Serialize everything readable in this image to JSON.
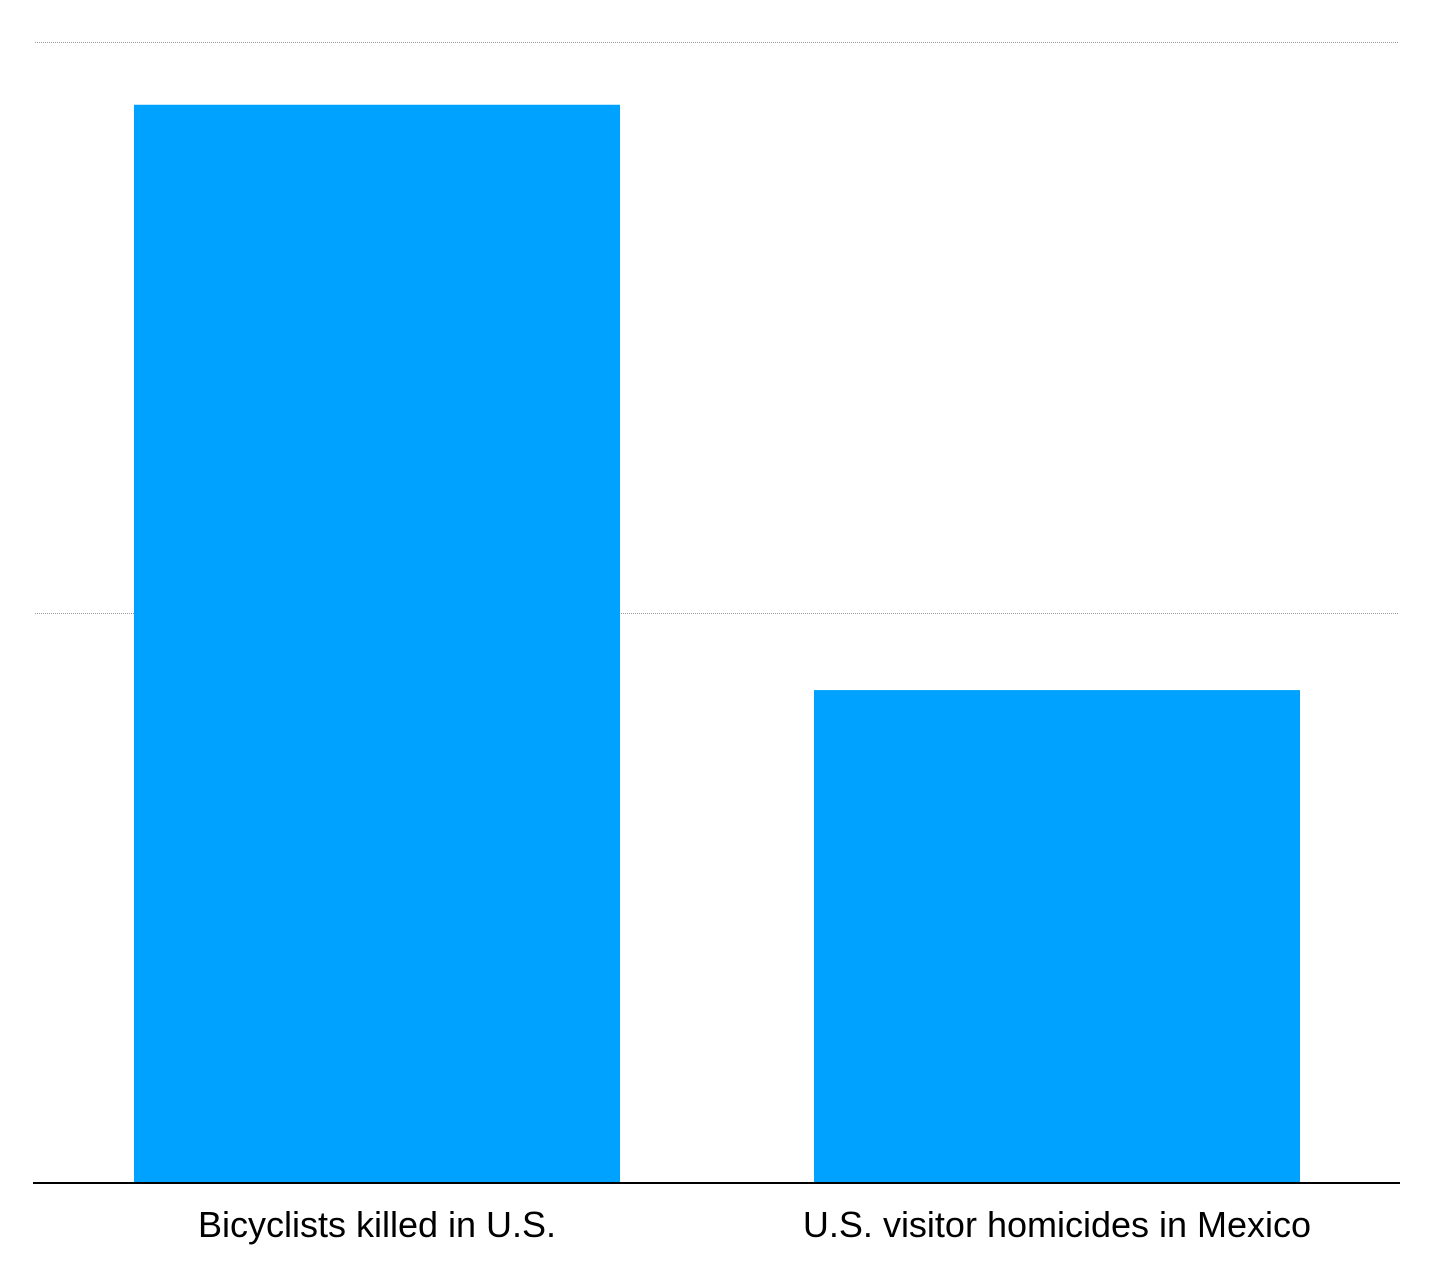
{
  "chart_data": {
    "type": "bar",
    "categories": [
      "Bicyclists killed in U.S.",
      "U.S. visitor homicides in Mexico"
    ],
    "values": [
      945,
      432
    ],
    "ylim": [
      0,
      1000
    ],
    "grid": true,
    "bar_color": "#00a2ff",
    "title": "",
    "xlabel": "",
    "ylabel": ""
  }
}
